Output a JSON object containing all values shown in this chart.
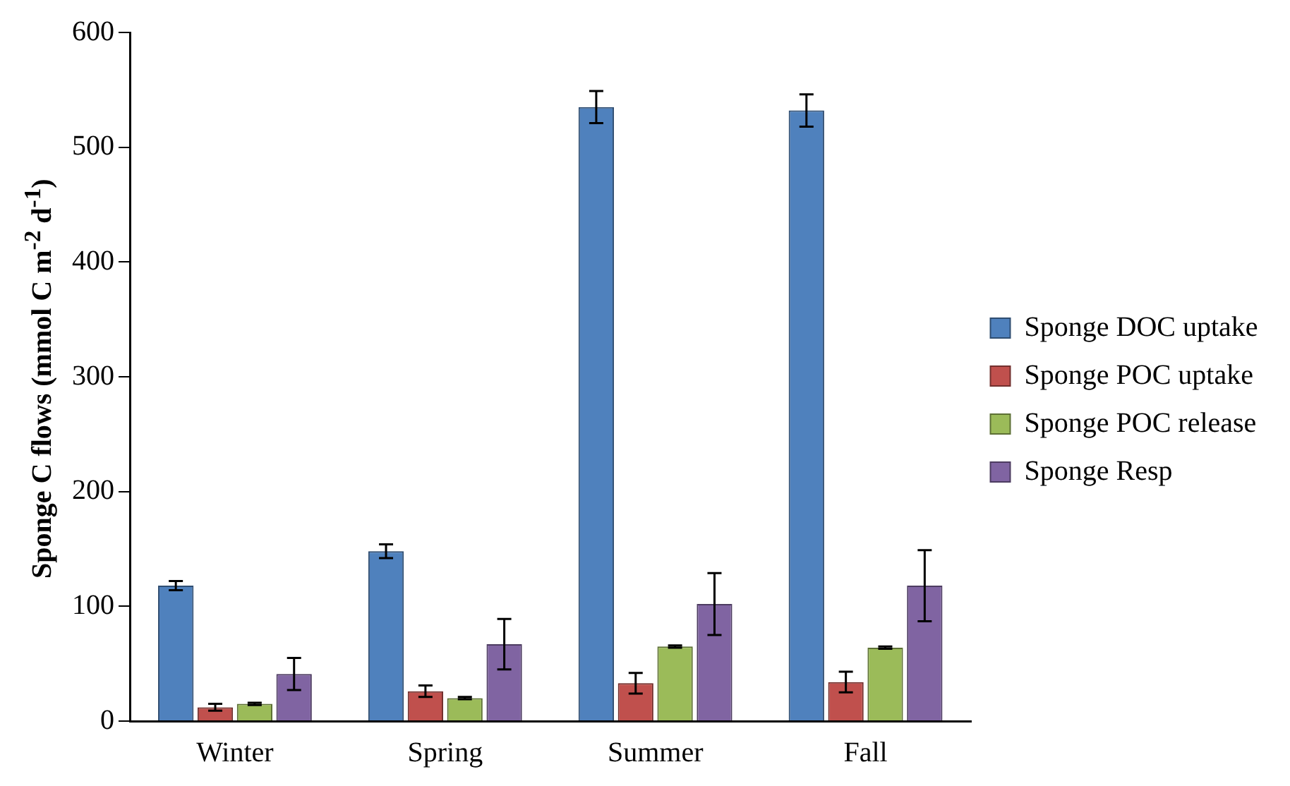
{
  "chart_data": {
    "type": "bar",
    "ylabel": "Sponge C flows (mmol C m$^{-2}$ d$^{-1}$)",
    "categories": [
      "Winter",
      "Spring",
      "Summer",
      "Fall"
    ],
    "series": [
      {
        "name": "Sponge DOC uptake",
        "color": "#4f81bd",
        "values": [
          118,
          148,
          535,
          532
        ],
        "errors": [
          4,
          6,
          14,
          14
        ]
      },
      {
        "name": "Sponge POC uptake",
        "color": "#c0504d",
        "values": [
          12,
          26,
          33,
          34
        ],
        "errors": [
          3,
          5,
          9,
          9
        ]
      },
      {
        "name": "Sponge POC release",
        "color": "#9bbb59",
        "values": [
          15,
          20,
          65,
          64
        ],
        "errors": [
          1,
          1,
          1,
          1
        ]
      },
      {
        "name": "Sponge Resp",
        "color": "#8064a2",
        "values": [
          41,
          67,
          102,
          118
        ],
        "errors": [
          14,
          22,
          27,
          31
        ]
      }
    ],
    "ylim": [
      0,
      600
    ],
    "yticks": [
      0,
      100,
      200,
      300,
      400,
      500,
      600
    ],
    "grid": false,
    "legend": "right"
  }
}
